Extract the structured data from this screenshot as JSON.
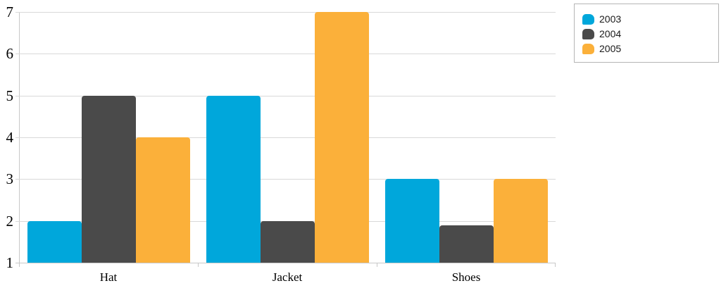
{
  "chart_data": {
    "type": "bar",
    "categories": [
      "Hat",
      "Jacket",
      "Shoes"
    ],
    "series": [
      {
        "name": "2003",
        "color": "#00A7DB",
        "values": [
          2,
          5,
          3
        ]
      },
      {
        "name": "2004",
        "color": "#4A4A4A",
        "values": [
          5,
          2,
          1.9
        ]
      },
      {
        "name": "2005",
        "color": "#FBB03A",
        "values": [
          4,
          7,
          3
        ]
      }
    ],
    "ylim": [
      1,
      7
    ],
    "yticks": [
      1,
      2,
      3,
      4,
      5,
      6,
      7
    ],
    "grid": true,
    "legend_position": "top-right",
    "colors": {
      "gridline": "#D9D9D9",
      "axis": "#C8C8C8",
      "legend_border": "#B5B5B5",
      "text": "#000000"
    }
  }
}
